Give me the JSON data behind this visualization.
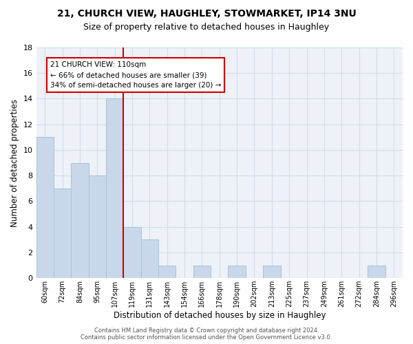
{
  "title1": "21, CHURCH VIEW, HAUGHLEY, STOWMARKET, IP14 3NU",
  "title2": "Size of property relative to detached houses in Haughley",
  "xlabel": "Distribution of detached houses by size in Haughley",
  "ylabel": "Number of detached properties",
  "bin_labels": [
    "60sqm",
    "72sqm",
    "84sqm",
    "95sqm",
    "107sqm",
    "119sqm",
    "131sqm",
    "143sqm",
    "154sqm",
    "166sqm",
    "178sqm",
    "190sqm",
    "202sqm",
    "213sqm",
    "225sqm",
    "237sqm",
    "249sqm",
    "261sqm",
    "272sqm",
    "284sqm",
    "296sqm"
  ],
  "bar_heights": [
    11,
    7,
    9,
    8,
    14,
    4,
    3,
    1,
    0,
    1,
    0,
    1,
    0,
    1,
    0,
    0,
    0,
    0,
    0,
    1,
    0
  ],
  "bar_color": "#c8d8ea",
  "bar_edgecolor": "#a8c0d6",
  "grid_color": "#d0dce8",
  "background_color": "#eef2f8",
  "red_line_x": 4.5,
  "annotation_text": "21 CHURCH VIEW: 110sqm\n← 66% of detached houses are smaller (39)\n34% of semi-detached houses are larger (20) →",
  "annotation_box_color": "#ffffff",
  "annotation_box_edge": "#cc0000",
  "property_line_color": "#cc0000",
  "ylim": [
    0,
    18
  ],
  "yticks": [
    0,
    2,
    4,
    6,
    8,
    10,
    12,
    14,
    16,
    18
  ],
  "footnote": "Contains HM Land Registry data © Crown copyright and database right 2024.\nContains public sector information licensed under the Open Government Licence v3.0."
}
